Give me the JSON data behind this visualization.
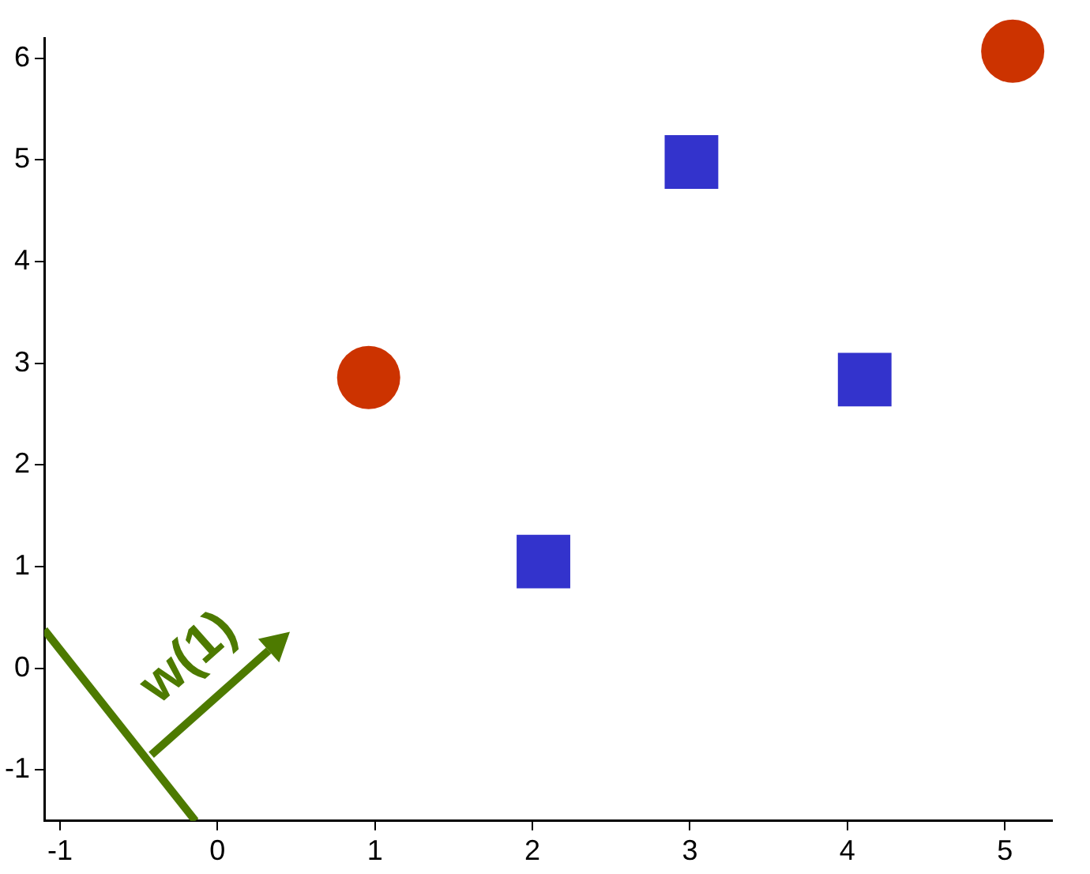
{
  "chart_data": {
    "type": "scatter",
    "legend": false,
    "grid": false,
    "xlim": [
      -1.1,
      5.3
    ],
    "xticks": [
      -1,
      0,
      1,
      2,
      3,
      4,
      5
    ],
    "ylim": [
      -1.5,
      6.2
    ],
    "yticks": [
      -1,
      0,
      1,
      2,
      3,
      4,
      5,
      6
    ],
    "annotations": [
      "w(1)"
    ],
    "series": [
      {
        "marker": "circle",
        "color": "#cc3300",
        "x": [
          0.96,
          5.05
        ],
        "values": [
          2.86,
          6.07
        ]
      },
      {
        "marker": "square",
        "color": "#3333cc",
        "x": [
          2.07,
          3.01,
          4.11
        ],
        "values": [
          1.05,
          4.98,
          2.84
        ]
      },
      {
        "type": "line",
        "marker": "none",
        "color": "#4d7a00",
        "x": [
          -1.1,
          -0.14
        ],
        "values": [
          0.38,
          -1.5
        ]
      }
    ]
  }
}
